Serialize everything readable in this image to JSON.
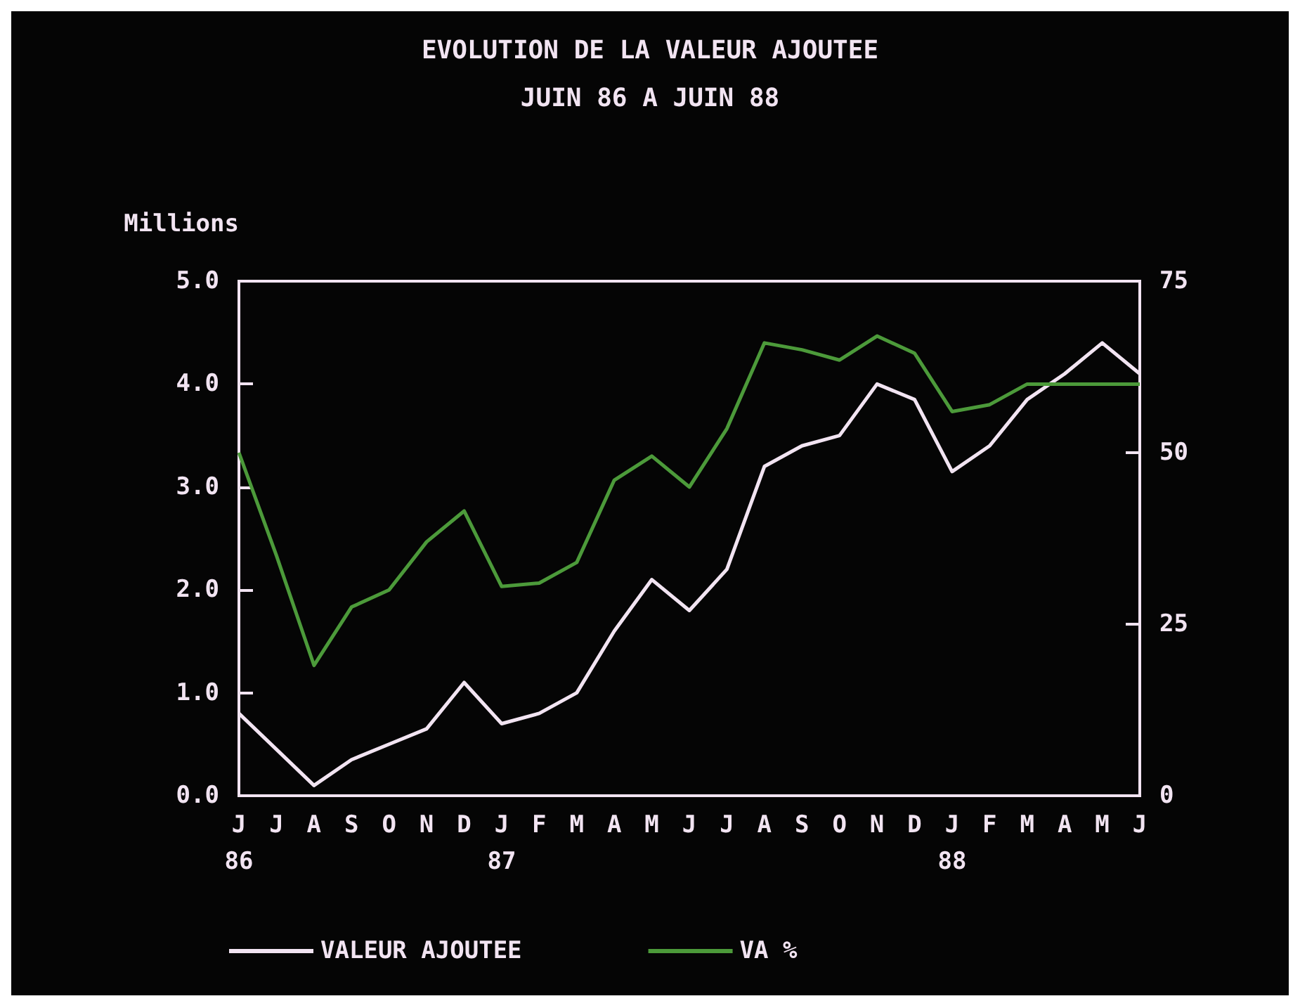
{
  "chart_data": {
    "type": "line",
    "title": "EVOLUTION DE LA VALEUR AJOUTEE",
    "subtitle": "JUIN 86 A JUIN 88",
    "ylabel": "Millions",
    "categories": [
      "J\n86",
      "J",
      "A",
      "S",
      "O",
      "N",
      "D",
      "J\n87",
      "F",
      "M",
      "A",
      "M",
      "J",
      "J",
      "A",
      "S",
      "O",
      "N",
      "D",
      "J\n88",
      "F",
      "M",
      "A",
      "M",
      "J"
    ],
    "series": [
      {
        "name": "VALEUR AJOUTEE",
        "color": "#f2e4f2",
        "values": [
          0.8,
          0.45,
          0.1,
          0.35,
          0.5,
          0.65,
          1.1,
          0.7,
          0.8,
          1.0,
          1.6,
          2.1,
          1.8,
          2.2,
          3.2,
          3.4,
          3.5,
          4.0,
          3.85,
          3.15,
          3.4,
          3.85,
          4.1,
          4.4,
          4.1
        ]
      },
      {
        "name": "VA %",
        "color": "#4c9a3a",
        "axis": "y2",
        "values": [
          50,
          35,
          19,
          27.5,
          30,
          37,
          41.5,
          30.5,
          31,
          34,
          46,
          49.5,
          45,
          53.5,
          66,
          65,
          63.5,
          67,
          64.5,
          56,
          57,
          60,
          60,
          60,
          60
        ]
      }
    ],
    "ylim": [
      0,
      5
    ],
    "yticks": [
      {
        "value": 0,
        "label": "0.0"
      },
      {
        "value": 1,
        "label": "1.0"
      },
      {
        "value": 2,
        "label": "2.0"
      },
      {
        "value": 3,
        "label": "3.0"
      },
      {
        "value": 4,
        "label": "4.0"
      },
      {
        "value": 5,
        "label": "5.0"
      }
    ],
    "y2lim": [
      0,
      75
    ],
    "y2ticks": [
      0,
      25,
      50,
      75
    ],
    "grid": false,
    "legend": "bottom",
    "marker": "none",
    "line_style": "solid"
  }
}
